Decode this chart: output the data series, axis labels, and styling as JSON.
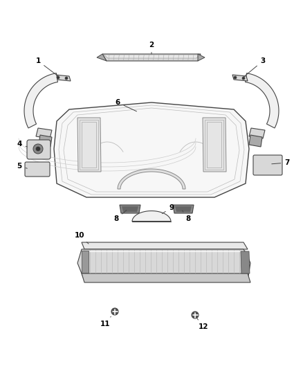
{
  "bg_color": "#ffffff",
  "fig_width": 4.38,
  "fig_height": 5.33,
  "dpi": 100,
  "line_color": "#444444",
  "light_fill": "#f0f0f0",
  "mid_fill": "#d8d8d8",
  "dark_fill": "#aaaaaa",
  "label_color": "#000000",
  "label_fontsize": 7.5
}
